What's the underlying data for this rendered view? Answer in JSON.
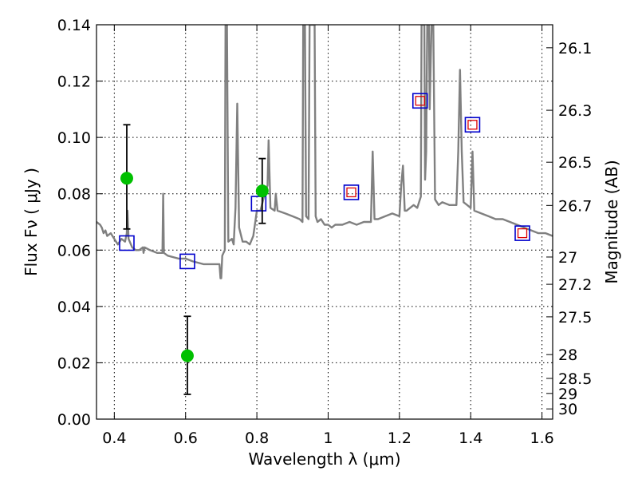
{
  "chart_data": {
    "type": "scatter",
    "title": "",
    "xlabel": "Wavelength  λ (μm)",
    "ylabel": "Flux  Fν  ( μJy )",
    "y2label": "Magnitude (AB)",
    "xlim": [
      0.35,
      1.63
    ],
    "ylim": [
      0.0,
      0.14
    ],
    "grid": true,
    "x_ticks": [
      0.4,
      0.6,
      0.8,
      1.0,
      1.2,
      1.4,
      1.6
    ],
    "x_tick_labels": [
      "0.4",
      "0.6",
      "0.8",
      "1",
      "1.2",
      "1.4",
      "1.6"
    ],
    "y_ticks": [
      0.0,
      0.02,
      0.04,
      0.06,
      0.08,
      0.1,
      0.12,
      0.14
    ],
    "y_tick_labels": [
      "0.00",
      "0.02",
      "0.04",
      "0.06",
      "0.08",
      "0.10",
      "0.12",
      "0.14"
    ],
    "mag_ticks": [
      "26.1",
      "26.3",
      "26.5",
      "26.7",
      "27",
      "27.2",
      "27.5",
      "28",
      "28.5",
      "29",
      "30"
    ],
    "colors": {
      "template": "#808080",
      "observed": "#00c000",
      "errorbar": "#000000",
      "model_blue": "#0000cc",
      "model_red": "#dd0000"
    },
    "series": [
      {
        "kind": "template_spectrum",
        "points": [
          [
            0.35,
            0.07
          ],
          [
            0.36,
            0.069
          ],
          [
            0.365,
            0.068
          ],
          [
            0.37,
            0.066
          ],
          [
            0.375,
            0.067
          ],
          [
            0.38,
            0.065
          ],
          [
            0.39,
            0.066
          ],
          [
            0.4,
            0.064
          ],
          [
            0.41,
            0.062
          ],
          [
            0.42,
            0.064
          ],
          [
            0.43,
            0.063
          ],
          [
            0.435,
            0.066
          ],
          [
            0.437,
            0.074
          ],
          [
            0.44,
            0.064
          ],
          [
            0.45,
            0.061
          ],
          [
            0.46,
            0.06
          ],
          [
            0.47,
            0.06
          ],
          [
            0.48,
            0.061
          ],
          [
            0.482,
            0.059
          ],
          [
            0.485,
            0.061
          ],
          [
            0.5,
            0.06
          ],
          [
            0.52,
            0.059
          ],
          [
            0.535,
            0.059
          ],
          [
            0.537,
            0.08
          ],
          [
            0.539,
            0.059
          ],
          [
            0.55,
            0.058
          ],
          [
            0.58,
            0.057
          ],
          [
            0.6,
            0.057
          ],
          [
            0.62,
            0.056
          ],
          [
            0.65,
            0.055
          ],
          [
            0.68,
            0.055
          ],
          [
            0.695,
            0.055
          ],
          [
            0.698,
            0.05
          ],
          [
            0.7,
            0.05
          ],
          [
            0.703,
            0.058
          ],
          [
            0.71,
            0.06
          ],
          [
            0.712,
            0.14
          ],
          [
            0.716,
            0.14
          ],
          [
            0.72,
            0.063
          ],
          [
            0.73,
            0.064
          ],
          [
            0.735,
            0.062
          ],
          [
            0.74,
            0.075
          ],
          [
            0.745,
            0.112
          ],
          [
            0.75,
            0.068
          ],
          [
            0.76,
            0.063
          ],
          [
            0.77,
            0.063
          ],
          [
            0.78,
            0.062
          ],
          [
            0.79,
            0.065
          ],
          [
            0.8,
            0.074
          ],
          [
            0.81,
            0.074
          ],
          [
            0.82,
            0.079
          ],
          [
            0.83,
            0.083
          ],
          [
            0.833,
            0.099
          ],
          [
            0.838,
            0.075
          ],
          [
            0.85,
            0.074
          ],
          [
            0.853,
            0.08
          ],
          [
            0.858,
            0.074
          ],
          [
            0.88,
            0.073
          ],
          [
            0.9,
            0.072
          ],
          [
            0.92,
            0.071
          ],
          [
            0.928,
            0.07
          ],
          [
            0.93,
            0.14
          ],
          [
            0.935,
            0.14
          ],
          [
            0.938,
            0.072
          ],
          [
            0.945,
            0.071
          ],
          [
            0.948,
            0.14
          ],
          [
            0.962,
            0.14
          ],
          [
            0.965,
            0.072
          ],
          [
            0.97,
            0.07
          ],
          [
            0.98,
            0.071
          ],
          [
            0.99,
            0.069
          ],
          [
            1.0,
            0.069
          ],
          [
            1.01,
            0.068
          ],
          [
            1.02,
            0.069
          ],
          [
            1.04,
            0.069
          ],
          [
            1.06,
            0.07
          ],
          [
            1.08,
            0.069
          ],
          [
            1.1,
            0.07
          ],
          [
            1.12,
            0.07
          ],
          [
            1.125,
            0.095
          ],
          [
            1.13,
            0.071
          ],
          [
            1.14,
            0.071
          ],
          [
            1.16,
            0.072
          ],
          [
            1.18,
            0.073
          ],
          [
            1.2,
            0.072
          ],
          [
            1.205,
            0.083
          ],
          [
            1.21,
            0.09
          ],
          [
            1.215,
            0.074
          ],
          [
            1.22,
            0.074
          ],
          [
            1.24,
            0.076
          ],
          [
            1.25,
            0.075
          ],
          [
            1.26,
            0.079
          ],
          [
            1.262,
            0.14
          ],
          [
            1.27,
            0.14
          ],
          [
            1.272,
            0.085
          ],
          [
            1.275,
            0.095
          ],
          [
            1.278,
            0.14
          ],
          [
            1.283,
            0.14
          ],
          [
            1.285,
            0.11
          ],
          [
            1.29,
            0.14
          ],
          [
            1.295,
            0.14
          ],
          [
            1.3,
            0.078
          ],
          [
            1.31,
            0.076
          ],
          [
            1.32,
            0.077
          ],
          [
            1.34,
            0.076
          ],
          [
            1.36,
            0.076
          ],
          [
            1.365,
            0.095
          ],
          [
            1.37,
            0.124
          ],
          [
            1.375,
            0.095
          ],
          [
            1.38,
            0.077
          ],
          [
            1.39,
            0.076
          ],
          [
            1.4,
            0.075
          ],
          [
            1.405,
            0.095
          ],
          [
            1.41,
            0.074
          ],
          [
            1.43,
            0.073
          ],
          [
            1.45,
            0.072
          ],
          [
            1.47,
            0.071
          ],
          [
            1.49,
            0.071
          ],
          [
            1.51,
            0.07
          ],
          [
            1.53,
            0.069
          ],
          [
            1.55,
            0.068
          ],
          [
            1.57,
            0.067
          ],
          [
            1.59,
            0.066
          ],
          [
            1.61,
            0.066
          ],
          [
            1.63,
            0.065
          ]
        ]
      },
      {
        "kind": "observed_photometry",
        "points": [
          {
            "x": 0.435,
            "y": 0.0855,
            "ylo": 0.0675,
            "yhi": 0.1045
          },
          {
            "x": 0.605,
            "y": 0.0225,
            "ylo": 0.0088,
            "yhi": 0.0365
          },
          {
            "x": 0.815,
            "y": 0.081,
            "ylo": 0.0695,
            "yhi": 0.0925
          }
        ]
      },
      {
        "kind": "model_photometry",
        "points": [
          {
            "x": 0.435,
            "y": 0.0625,
            "inner": false
          },
          {
            "x": 0.605,
            "y": 0.056,
            "inner": false
          },
          {
            "x": 0.805,
            "y": 0.0765,
            "inner": false
          },
          {
            "x": 1.065,
            "y": 0.0805,
            "inner": true
          },
          {
            "x": 1.258,
            "y": 0.113,
            "inner": true
          },
          {
            "x": 1.405,
            "y": 0.1045,
            "inner": true
          },
          {
            "x": 1.545,
            "y": 0.066,
            "inner": true
          }
        ]
      }
    ]
  }
}
